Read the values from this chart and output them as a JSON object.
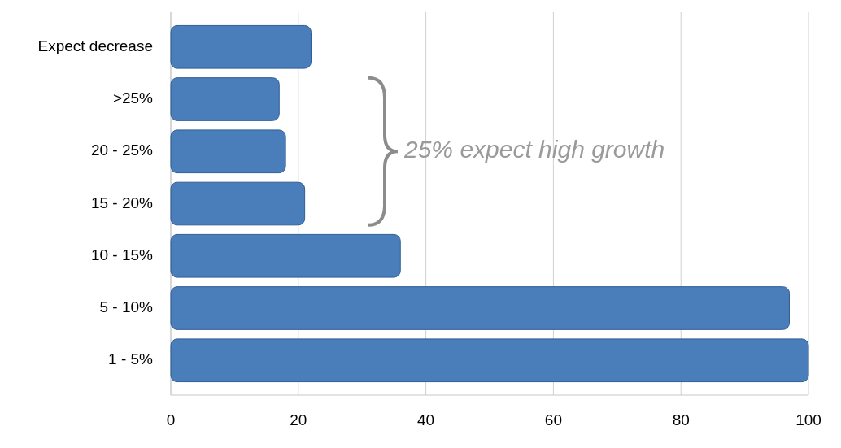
{
  "chart_data": {
    "type": "bar",
    "orientation": "horizontal",
    "categories": [
      "Expect decrease",
      ">25%",
      "20 - 25%",
      "15 - 20%",
      "10 - 15%",
      "5 - 10%",
      "1 - 5%"
    ],
    "values": [
      22,
      17,
      18,
      21,
      36,
      97,
      100
    ],
    "color": "#4a7ebb",
    "xlim": [
      0,
      100
    ],
    "xticks": [
      0,
      20,
      40,
      60,
      80,
      100
    ],
    "grid": "x",
    "annotations": [
      "25% expect high growth"
    ]
  }
}
